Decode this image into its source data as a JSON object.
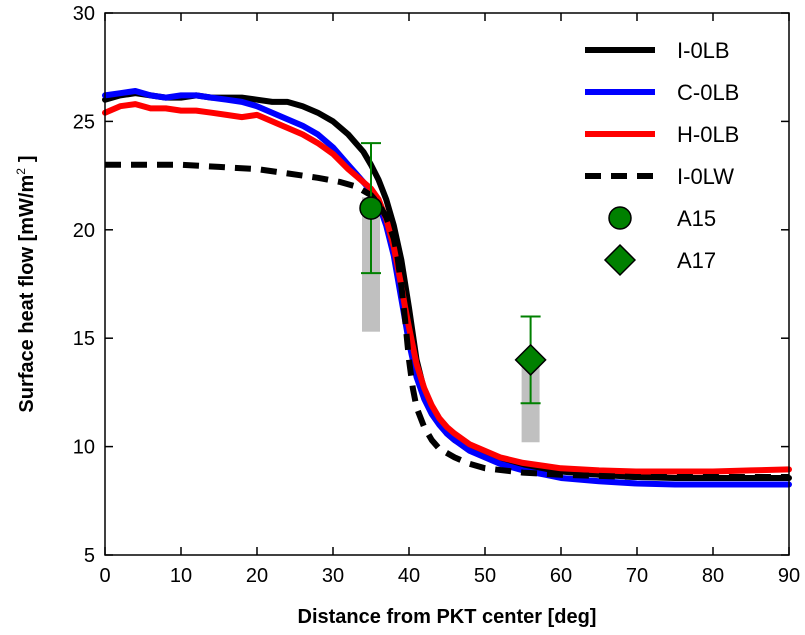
{
  "chart_data": {
    "type": "line",
    "xlabel": "Distance from PKT center [deg]",
    "ylabel_main": "Surface heat flow [mW/m",
    "ylabel_sup": "2",
    "ylabel_end": "]",
    "xlim": [
      0,
      90
    ],
    "ylim": [
      5,
      30
    ],
    "xticks": [
      0,
      10,
      20,
      30,
      40,
      50,
      60,
      70,
      80,
      90
    ],
    "yticks": [
      5,
      10,
      15,
      20,
      25,
      30
    ],
    "grid": false,
    "legend_position": "top-right",
    "series": [
      {
        "name": "I-0LB",
        "color": "#000000",
        "style": "solid",
        "x": [
          0,
          2,
          4,
          6,
          8,
          10,
          12,
          14,
          16,
          18,
          20,
          22,
          24,
          26,
          28,
          30,
          32,
          33,
          34,
          35,
          36,
          37,
          38,
          39,
          40,
          40.5,
          41,
          42,
          43,
          44,
          45,
          46,
          48,
          50,
          52,
          55,
          58,
          60,
          65,
          70,
          75,
          80,
          85,
          90
        ],
        "y": [
          26.0,
          26.2,
          26.3,
          26.2,
          26.1,
          26.1,
          26.2,
          26.1,
          26.1,
          26.1,
          26.0,
          25.9,
          25.9,
          25.7,
          25.4,
          25.0,
          24.4,
          24.0,
          23.6,
          23.0,
          22.3,
          21.4,
          20.2,
          18.6,
          16.4,
          15.2,
          14.0,
          12.6,
          11.7,
          11.1,
          10.6,
          10.3,
          9.9,
          9.6,
          9.4,
          9.15,
          8.95,
          8.85,
          8.7,
          8.6,
          8.55,
          8.55,
          8.55,
          8.55
        ]
      },
      {
        "name": "C-0LB",
        "color": "#0000ff",
        "style": "solid",
        "x": [
          0,
          2,
          4,
          6,
          8,
          10,
          12,
          14,
          16,
          18,
          20,
          22,
          24,
          26,
          28,
          30,
          32,
          33,
          34,
          35,
          36,
          37,
          38,
          39,
          39.5,
          40,
          41,
          42,
          43,
          44,
          45,
          46,
          48,
          50,
          52,
          55,
          58,
          60,
          65,
          70,
          75,
          80,
          85,
          90
        ],
        "y": [
          26.2,
          26.3,
          26.4,
          26.2,
          26.1,
          26.2,
          26.2,
          26.1,
          26.0,
          25.9,
          25.7,
          25.4,
          25.1,
          24.8,
          24.4,
          23.8,
          23.0,
          22.6,
          22.2,
          21.8,
          21.2,
          20.2,
          18.8,
          16.8,
          15.8,
          14.8,
          13.2,
          12.2,
          11.5,
          11.0,
          10.6,
          10.3,
          9.8,
          9.5,
          9.2,
          8.9,
          8.7,
          8.55,
          8.4,
          8.3,
          8.25,
          8.25,
          8.25,
          8.25
        ]
      },
      {
        "name": "H-0LB",
        "color": "#ff0000",
        "style": "solid",
        "x": [
          0,
          2,
          4,
          6,
          8,
          10,
          12,
          14,
          16,
          18,
          20,
          22,
          24,
          26,
          28,
          30,
          32,
          33,
          34,
          35,
          36,
          37,
          38,
          39,
          39.5,
          40,
          41,
          42,
          43,
          44,
          45,
          46,
          48,
          50,
          52,
          55,
          58,
          60,
          65,
          70,
          75,
          80,
          85,
          90
        ],
        "y": [
          25.4,
          25.7,
          25.8,
          25.6,
          25.6,
          25.5,
          25.5,
          25.4,
          25.3,
          25.2,
          25.3,
          25.0,
          24.7,
          24.4,
          24.0,
          23.5,
          22.8,
          22.5,
          22.2,
          21.9,
          21.4,
          20.5,
          19.2,
          17.4,
          16.4,
          15.5,
          13.8,
          12.7,
          11.9,
          11.3,
          10.9,
          10.6,
          10.1,
          9.8,
          9.5,
          9.25,
          9.1,
          9.0,
          8.9,
          8.85,
          8.85,
          8.85,
          8.9,
          8.95
        ]
      },
      {
        "name": "I-0LW",
        "color": "#000000",
        "style": "dashed",
        "x": [
          0,
          5,
          10,
          15,
          20,
          24,
          28,
          31,
          33,
          35,
          36,
          37,
          38,
          38.5,
          39,
          39.5,
          40,
          40.5,
          41,
          42,
          43,
          44,
          46,
          48,
          50,
          55,
          60,
          65,
          70,
          80,
          90
        ],
        "y": [
          23.0,
          23.0,
          23.0,
          22.9,
          22.8,
          22.6,
          22.4,
          22.2,
          22.0,
          21.6,
          21.2,
          20.6,
          19.6,
          18.7,
          17.4,
          15.8,
          14.0,
          12.7,
          11.8,
          10.9,
          10.3,
          9.9,
          9.5,
          9.2,
          9.0,
          8.8,
          8.7,
          8.65,
          8.6,
          8.6,
          8.6
        ]
      }
    ],
    "observations": [
      {
        "name": "A15",
        "marker": "circle",
        "color": "#008000",
        "x": 35,
        "y": 21,
        "yerr_low": 18,
        "yerr_high": 24,
        "range_low": 15.3,
        "range_high": 21.5
      },
      {
        "name": "A17",
        "marker": "diamond",
        "color": "#008000",
        "x": 56,
        "y": 14,
        "yerr_low": 12,
        "yerr_high": 16,
        "range_low": 10.2,
        "range_high": 14.0
      }
    ]
  }
}
